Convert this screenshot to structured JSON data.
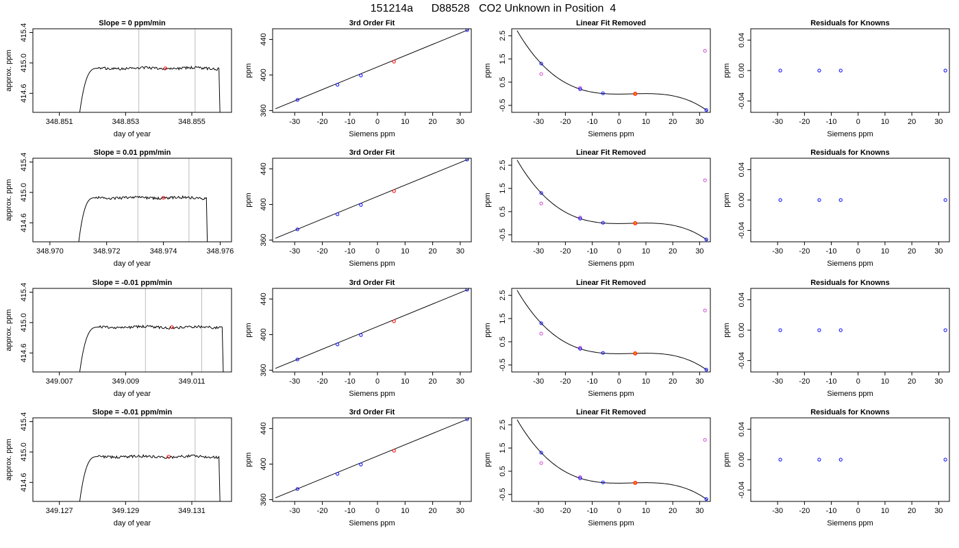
{
  "page": {
    "title": "151214a      D88528   CO2 Unknown in Position  4"
  },
  "colors": {
    "known_point": "#0000ff",
    "unknown_point": "#ff0000",
    "raw_known_point": "#cc44cc",
    "unknown_fit_point": "#ff8800",
    "trace": "#000000",
    "window_line": "#bbbbbb"
  },
  "chart_data": [
    {
      "type": "line",
      "panel": "trace",
      "row": 1,
      "title": "Slope =  0  ppm/min",
      "xlabel": "day of year",
      "ylabel": "approx. ppm",
      "xlim": [
        348.8502,
        348.8562
      ],
      "ylim": [
        414.35,
        415.45
      ],
      "xticks": [
        348.851,
        348.853,
        348.855
      ],
      "xtick_labels": [
        "348.851",
        "348.853",
        "348.855"
      ],
      "yticks": [
        414.6,
        415.0,
        415.4
      ],
      "ytick_labels": [
        "414.6",
        "415.0",
        "415.4"
      ],
      "trace_start": 348.8516,
      "trace_end": 348.8559,
      "plateau": 414.93,
      "window": [
        348.8534,
        348.8551
      ],
      "unknown_point": {
        "x": 348.8542,
        "y": 414.93
      }
    },
    {
      "type": "line",
      "panel": "fit",
      "row": 1,
      "title": "3rd Order Fit",
      "xlabel": "Siemens ppm",
      "ylabel": "ppm",
      "xlim": [
        -38,
        34
      ],
      "ylim": [
        358,
        452
      ],
      "xticks": [
        -30,
        -20,
        -10,
        0,
        10,
        20,
        30
      ],
      "xtick_labels": [
        "-30",
        "-20",
        "-10",
        "0",
        "10",
        "20",
        "30"
      ],
      "yticks": [
        360,
        400,
        440
      ],
      "ytick_labels": [
        "360",
        "400",
        "440"
      ],
      "line": {
        "x": [
          -37,
          33
        ],
        "y": [
          362,
          451
        ]
      },
      "known": {
        "x": [
          -29,
          -14.5,
          -6,
          32.5
        ],
        "y": [
          372,
          389,
          399.5,
          450.5
        ]
      },
      "unknown": {
        "x": [
          6
        ],
        "y": [
          415
        ]
      }
    },
    {
      "type": "scatter",
      "panel": "residual_curve",
      "row": 1,
      "title": "Linear Fit Removed",
      "xlabel": "Siemens ppm",
      "ylabel": "ppm",
      "xlim": [
        -40,
        34
      ],
      "ylim": [
        -0.8,
        2.8
      ],
      "xticks": [
        -30,
        -20,
        -10,
        0,
        10,
        20,
        30
      ],
      "xtick_labels": [
        "-30",
        "-20",
        "-10",
        "0",
        "10",
        "20",
        "30"
      ],
      "yticks": [
        -0.5,
        0.5,
        1.5,
        2.5
      ],
      "ytick_labels": [
        "-0.5",
        "0.5",
        "1.5",
        "2.5"
      ],
      "cubic": {
        "x0": 6,
        "y0": 0.0,
        "x1": -14.5,
        "y1": 0.2,
        "x2": -29,
        "y2": 1.3,
        "x3": 32.5,
        "y3": -0.7
      },
      "curve_range": [
        -38,
        33
      ],
      "known": {
        "x": [
          -29,
          -14.5,
          -6,
          32.5
        ],
        "y": [
          1.3,
          0.2,
          0.02,
          -0.7
        ]
      },
      "raw_known": {
        "x": [
          -29,
          -14.5,
          32
        ],
        "y": [
          0.85,
          0.25,
          1.85
        ]
      },
      "unknown": {
        "x": [
          6
        ],
        "y": [
          0.0
        ]
      }
    },
    {
      "type": "scatter",
      "panel": "residuals",
      "row": 1,
      "title": "Residuals for Knowns",
      "xlabel": "Siemens ppm",
      "ylabel": "ppm",
      "xlim": [
        -40,
        34
      ],
      "ylim": [
        -0.055,
        0.055
      ],
      "xticks": [
        -30,
        -20,
        -10,
        0,
        10,
        20,
        30
      ],
      "xtick_labels": [
        "-30",
        "-20",
        "-10",
        "0",
        "10",
        "20",
        "30"
      ],
      "yticks": [
        -0.04,
        0.0,
        0.04
      ],
      "ytick_labels": [
        "-0.04",
        "0.00",
        "0.04"
      ],
      "known": {
        "x": [
          -29,
          -14.5,
          -6.5,
          32.5
        ],
        "y": [
          0,
          0,
          0,
          0
        ]
      }
    },
    {
      "type": "line",
      "panel": "trace",
      "row": 2,
      "title": "Slope =  0.01  ppm/min",
      "xlabel": "day of year",
      "ylabel": "approx. ppm",
      "xlim": [
        348.9694,
        348.9764
      ],
      "ylim": [
        414.35,
        415.45
      ],
      "xticks": [
        348.97,
        348.972,
        348.974,
        348.976
      ],
      "xtick_labels": [
        "348.970",
        "348.972",
        "348.974",
        "348.976"
      ],
      "yticks": [
        414.6,
        415.0,
        415.4
      ],
      "ytick_labels": [
        "414.6",
        "415.0",
        "415.4"
      ],
      "trace_start": 348.971,
      "trace_end": 348.9756,
      "plateau": 414.93,
      "window": [
        348.9731,
        348.9749
      ],
      "unknown_point": {
        "x": 348.974,
        "y": 414.93
      }
    },
    {
      "type": "line",
      "panel": "fit",
      "row": 2,
      "title": "3rd Order Fit",
      "xlabel": "Siemens ppm",
      "ylabel": "ppm",
      "xlim": [
        -38,
        34
      ],
      "ylim": [
        358,
        452
      ],
      "xticks": [
        -30,
        -20,
        -10,
        0,
        10,
        20,
        30
      ],
      "xtick_labels": [
        "-30",
        "-20",
        "-10",
        "0",
        "10",
        "20",
        "30"
      ],
      "yticks": [
        360,
        400,
        440
      ],
      "ytick_labels": [
        "360",
        "400",
        "440"
      ],
      "line": {
        "x": [
          -37,
          33
        ],
        "y": [
          362,
          451
        ]
      },
      "known": {
        "x": [
          -29,
          -14.5,
          -6,
          32.5
        ],
        "y": [
          372,
          389,
          399.5,
          450.5
        ]
      },
      "unknown": {
        "x": [
          6
        ],
        "y": [
          415
        ]
      }
    },
    {
      "type": "scatter",
      "panel": "residual_curve",
      "row": 2,
      "title": "Linear Fit Removed",
      "xlabel": "Siemens ppm",
      "ylabel": "ppm",
      "xlim": [
        -40,
        34
      ],
      "ylim": [
        -0.8,
        2.8
      ],
      "xticks": [
        -30,
        -20,
        -10,
        0,
        10,
        20,
        30
      ],
      "xtick_labels": [
        "-30",
        "-20",
        "-10",
        "0",
        "10",
        "20",
        "30"
      ],
      "yticks": [
        -0.5,
        0.5,
        1.5,
        2.5
      ],
      "ytick_labels": [
        "-0.5",
        "0.5",
        "1.5",
        "2.5"
      ],
      "cubic": {
        "x0": 6,
        "y0": 0.0,
        "x1": -14.5,
        "y1": 0.2,
        "x2": -29,
        "y2": 1.3,
        "x3": 32.5,
        "y3": -0.7
      },
      "curve_range": [
        -38,
        33
      ],
      "known": {
        "x": [
          -29,
          -14.5,
          -6,
          32.5
        ],
        "y": [
          1.3,
          0.2,
          0.02,
          -0.7
        ]
      },
      "raw_known": {
        "x": [
          -29,
          -14.5,
          32
        ],
        "y": [
          0.85,
          0.25,
          1.85
        ]
      },
      "unknown": {
        "x": [
          6
        ],
        "y": [
          0.0
        ]
      }
    },
    {
      "type": "scatter",
      "panel": "residuals",
      "row": 2,
      "title": "Residuals for Knowns",
      "xlabel": "Siemens ppm",
      "ylabel": "ppm",
      "xlim": [
        -40,
        34
      ],
      "ylim": [
        -0.055,
        0.055
      ],
      "xticks": [
        -30,
        -20,
        -10,
        0,
        10,
        20,
        30
      ],
      "xtick_labels": [
        "-30",
        "-20",
        "-10",
        "0",
        "10",
        "20",
        "30"
      ],
      "yticks": [
        -0.04,
        0.0,
        0.04
      ],
      "ytick_labels": [
        "-0.04",
        "0.00",
        "0.04"
      ],
      "known": {
        "x": [
          -29,
          -14.5,
          -6.5,
          32.5
        ],
        "y": [
          0,
          0,
          0,
          0
        ]
      }
    },
    {
      "type": "line",
      "panel": "trace",
      "row": 3,
      "title": "Slope =  -0.01  ppm/min",
      "xlabel": "day of year",
      "ylabel": "approx. ppm",
      "xlim": [
        349.0062,
        349.0122
      ],
      "ylim": [
        414.35,
        415.45
      ],
      "xticks": [
        349.007,
        349.009,
        349.011
      ],
      "xtick_labels": [
        "349.007",
        "349.009",
        "349.011"
      ],
      "yticks": [
        414.6,
        415.0,
        415.4
      ],
      "ytick_labels": [
        "414.6",
        "415.0",
        "415.4"
      ],
      "trace_start": 349.0076,
      "trace_end": 349.012,
      "plateau": 414.94,
      "window": [
        349.0096,
        349.0113
      ],
      "unknown_point": {
        "x": 349.0104,
        "y": 414.94
      }
    },
    {
      "type": "line",
      "panel": "fit",
      "row": 3,
      "title": "3rd Order Fit",
      "xlabel": "Siemens ppm",
      "ylabel": "ppm",
      "xlim": [
        -38,
        34
      ],
      "ylim": [
        358,
        452
      ],
      "xticks": [
        -30,
        -20,
        -10,
        0,
        10,
        20,
        30
      ],
      "xtick_labels": [
        "-30",
        "-20",
        "-10",
        "0",
        "10",
        "20",
        "30"
      ],
      "yticks": [
        360,
        400,
        440
      ],
      "ytick_labels": [
        "360",
        "400",
        "440"
      ],
      "line": {
        "x": [
          -37,
          33
        ],
        "y": [
          362,
          451
        ]
      },
      "known": {
        "x": [
          -29,
          -14.5,
          -6,
          32.5
        ],
        "y": [
          372,
          389,
          399.5,
          450.5
        ]
      },
      "unknown": {
        "x": [
          6
        ],
        "y": [
          415
        ]
      }
    },
    {
      "type": "scatter",
      "panel": "residual_curve",
      "row": 3,
      "title": "Linear Fit Removed",
      "xlabel": "Siemens ppm",
      "ylabel": "ppm",
      "xlim": [
        -40,
        34
      ],
      "ylim": [
        -0.8,
        2.8
      ],
      "xticks": [
        -30,
        -20,
        -10,
        0,
        10,
        20,
        30
      ],
      "xtick_labels": [
        "-30",
        "-20",
        "-10",
        "0",
        "10",
        "20",
        "30"
      ],
      "yticks": [
        -0.5,
        0.5,
        1.5,
        2.5
      ],
      "ytick_labels": [
        "-0.5",
        "0.5",
        "1.5",
        "2.5"
      ],
      "cubic": {
        "x0": 6,
        "y0": 0.0,
        "x1": -14.5,
        "y1": 0.2,
        "x2": -29,
        "y2": 1.3,
        "x3": 32.5,
        "y3": -0.7
      },
      "curve_range": [
        -38,
        33
      ],
      "known": {
        "x": [
          -29,
          -14.5,
          -6,
          32.5
        ],
        "y": [
          1.3,
          0.2,
          0.02,
          -0.7
        ]
      },
      "raw_known": {
        "x": [
          -29,
          -14.5,
          32
        ],
        "y": [
          0.85,
          0.25,
          1.85
        ]
      },
      "unknown": {
        "x": [
          6
        ],
        "y": [
          0.0
        ]
      }
    },
    {
      "type": "scatter",
      "panel": "residuals",
      "row": 3,
      "title": "Residuals for Knowns",
      "xlabel": "Siemens ppm",
      "ylabel": "ppm",
      "xlim": [
        -40,
        34
      ],
      "ylim": [
        -0.055,
        0.055
      ],
      "xticks": [
        -30,
        -20,
        -10,
        0,
        10,
        20,
        30
      ],
      "xtick_labels": [
        "-30",
        "-20",
        "-10",
        "0",
        "10",
        "20",
        "30"
      ],
      "yticks": [
        -0.04,
        0.0,
        0.04
      ],
      "ytick_labels": [
        "-0.04",
        "0.00",
        "0.04"
      ],
      "known": {
        "x": [
          -29,
          -14.5,
          -6.5,
          32.5
        ],
        "y": [
          0,
          0,
          0,
          0
        ]
      }
    },
    {
      "type": "line",
      "panel": "trace",
      "row": 4,
      "title": "Slope =  -0.01  ppm/min",
      "xlabel": "day of year",
      "ylabel": "approx. ppm",
      "xlim": [
        349.1262,
        349.1322
      ],
      "ylim": [
        414.35,
        415.45
      ],
      "xticks": [
        349.127,
        349.129,
        349.131
      ],
      "xtick_labels": [
        "349.127",
        "349.129",
        "349.131"
      ],
      "yticks": [
        414.6,
        415.0,
        415.4
      ],
      "ytick_labels": [
        "414.6",
        "415.0",
        "415.4"
      ],
      "trace_start": 349.1276,
      "trace_end": 349.1319,
      "plateau": 414.94,
      "window": [
        349.1294,
        349.1311
      ],
      "unknown_point": {
        "x": 349.1303,
        "y": 414.94
      }
    },
    {
      "type": "line",
      "panel": "fit",
      "row": 4,
      "title": "3rd Order Fit",
      "xlabel": "Siemens ppm",
      "ylabel": "ppm",
      "xlim": [
        -38,
        34
      ],
      "ylim": [
        358,
        452
      ],
      "xticks": [
        -30,
        -20,
        -10,
        0,
        10,
        20,
        30
      ],
      "xtick_labels": [
        "-30",
        "-20",
        "-10",
        "0",
        "10",
        "20",
        "30"
      ],
      "yticks": [
        360,
        400,
        440
      ],
      "ytick_labels": [
        "360",
        "400",
        "440"
      ],
      "line": {
        "x": [
          -37,
          33
        ],
        "y": [
          362,
          451
        ]
      },
      "known": {
        "x": [
          -29,
          -14.5,
          -6,
          32.5
        ],
        "y": [
          372,
          389,
          399.5,
          450.5
        ]
      },
      "unknown": {
        "x": [
          6
        ],
        "y": [
          415
        ]
      }
    },
    {
      "type": "scatter",
      "panel": "residual_curve",
      "row": 4,
      "title": "Linear Fit Removed",
      "xlabel": "Siemens ppm",
      "ylabel": "ppm",
      "xlim": [
        -40,
        34
      ],
      "ylim": [
        -0.8,
        2.8
      ],
      "xticks": [
        -30,
        -20,
        -10,
        0,
        10,
        20,
        30
      ],
      "xtick_labels": [
        "-30",
        "-20",
        "-10",
        "0",
        "10",
        "20",
        "30"
      ],
      "yticks": [
        -0.5,
        0.5,
        1.5,
        2.5
      ],
      "ytick_labels": [
        "-0.5",
        "0.5",
        "1.5",
        "2.5"
      ],
      "cubic": {
        "x0": 6,
        "y0": 0.0,
        "x1": -14.5,
        "y1": 0.2,
        "x2": -29,
        "y2": 1.3,
        "x3": 32.5,
        "y3": -0.7
      },
      "curve_range": [
        -38,
        33
      ],
      "known": {
        "x": [
          -29,
          -14.5,
          -6,
          32.5
        ],
        "y": [
          1.3,
          0.2,
          0.02,
          -0.7
        ]
      },
      "raw_known": {
        "x": [
          -29,
          -14.5,
          32
        ],
        "y": [
          0.85,
          0.25,
          1.85
        ]
      },
      "unknown": {
        "x": [
          6
        ],
        "y": [
          0.0
        ]
      }
    },
    {
      "type": "scatter",
      "panel": "residuals",
      "row": 4,
      "title": "Residuals for Knowns",
      "xlabel": "Siemens ppm",
      "ylabel": "ppm",
      "xlim": [
        -40,
        34
      ],
      "ylim": [
        -0.055,
        0.055
      ],
      "xticks": [
        -30,
        -20,
        -10,
        0,
        10,
        20,
        30
      ],
      "xtick_labels": [
        "-30",
        "-20",
        "-10",
        "0",
        "10",
        "20",
        "30"
      ],
      "yticks": [
        -0.04,
        0.0,
        0.04
      ],
      "ytick_labels": [
        "-0.04",
        "0.00",
        "0.04"
      ],
      "known": {
        "x": [
          -29,
          -14.5,
          -6.5,
          32.5
        ],
        "y": [
          0,
          0,
          0,
          0
        ]
      }
    }
  ]
}
